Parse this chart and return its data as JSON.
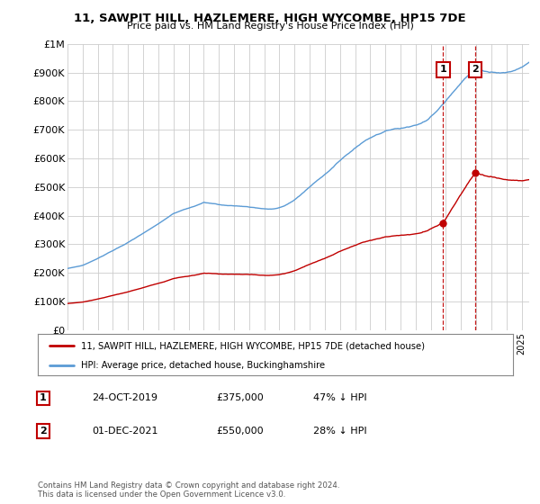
{
  "title": "11, SAWPIT HILL, HAZLEMERE, HIGH WYCOMBE, HP15 7DE",
  "subtitle": "Price paid vs. HM Land Registry's House Price Index (HPI)",
  "ylim": [
    0,
    1000000
  ],
  "yticks": [
    0,
    100000,
    200000,
    300000,
    400000,
    500000,
    600000,
    700000,
    800000,
    900000,
    1000000
  ],
  "ytick_labels": [
    "£0",
    "£100K",
    "£200K",
    "£300K",
    "£400K",
    "£500K",
    "£600K",
    "£700K",
    "£800K",
    "£900K",
    "£1M"
  ],
  "xlim_start": 1995.0,
  "xlim_end": 2025.5,
  "hpi_color": "#5b9bd5",
  "price_color": "#c00000",
  "sale1_date_label": "24-OCT-2019",
  "sale1_price": 375000,
  "sale1_price_label": "£375,000",
  "sale1_hpi_pct": "47% ↓ HPI",
  "sale1_x": 2019.82,
  "sale2_date_label": "01-DEC-2021",
  "sale2_price": 550000,
  "sale2_price_label": "£550,000",
  "sale2_hpi_pct": "28% ↓ HPI",
  "sale2_x": 2021.92,
  "legend_line1": "11, SAWPIT HILL, HAZLEMERE, HIGH WYCOMBE, HP15 7DE (detached house)",
  "legend_line2": "HPI: Average price, detached house, Buckinghamshire",
  "footnote": "Contains HM Land Registry data © Crown copyright and database right 2024.\nThis data is licensed under the Open Government Licence v3.0.",
  "bg_color": "#ffffff",
  "grid_color": "#cccccc"
}
